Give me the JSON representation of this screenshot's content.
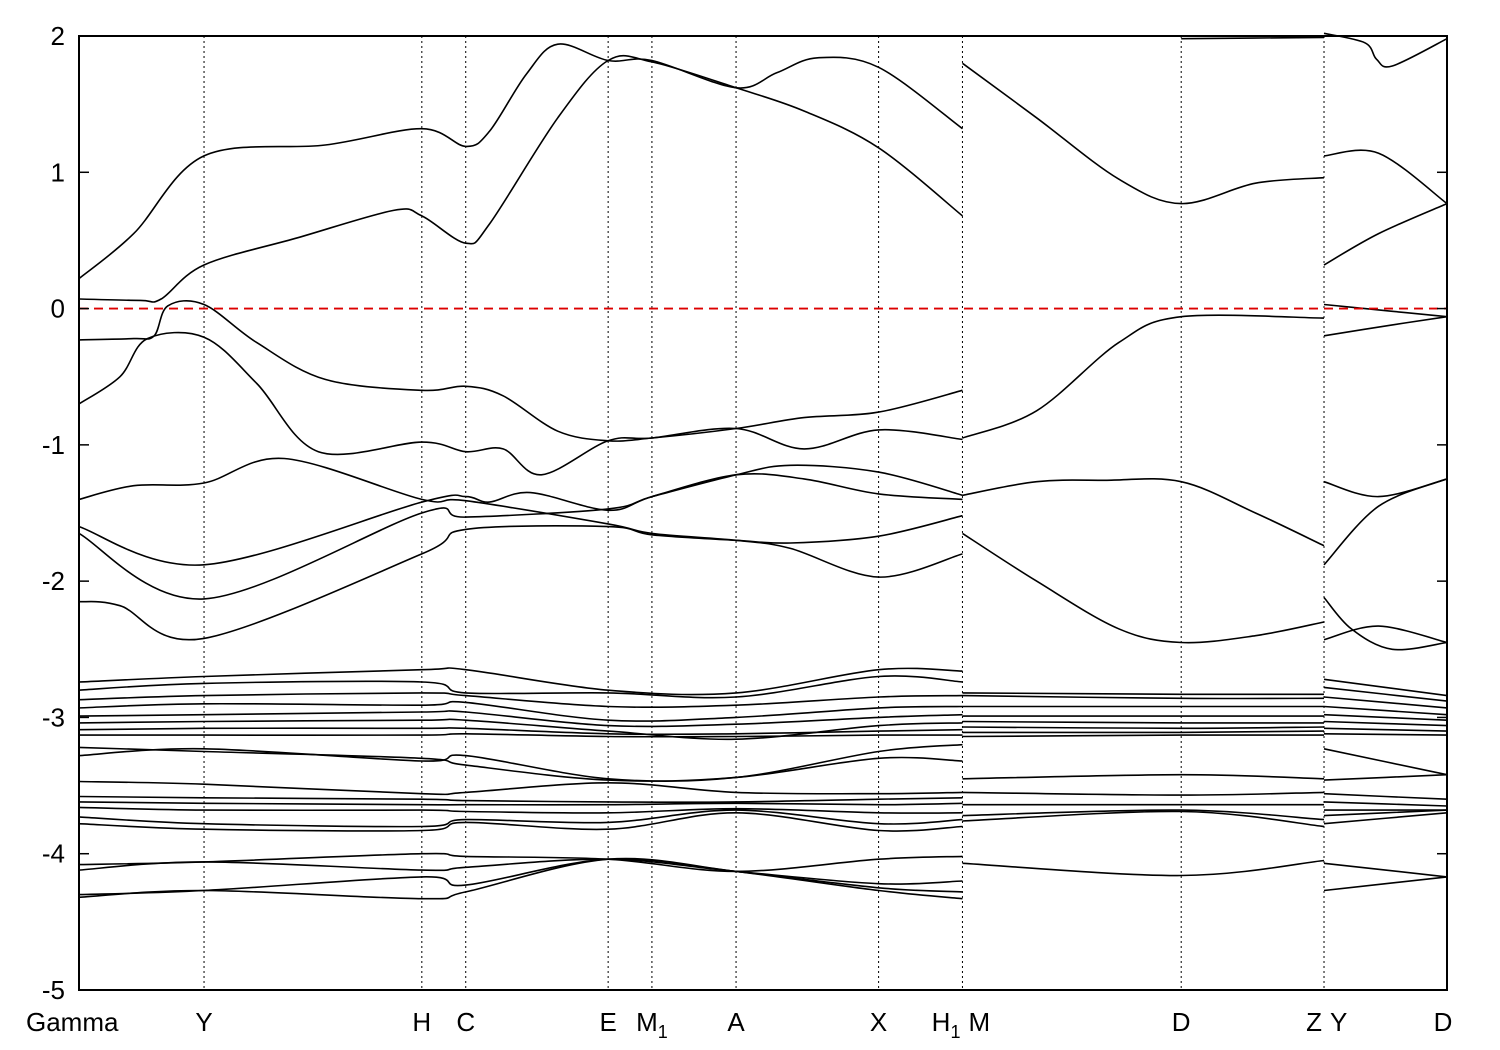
{
  "chart_data": {
    "type": "line",
    "title": "",
    "xlabel": "",
    "ylabel": "",
    "ylim": [
      -5,
      2
    ],
    "grid": false,
    "yticks": [
      "2",
      "1",
      "0",
      "-1",
      "-2",
      "-3",
      "-4",
      "-5"
    ],
    "kpoints": [
      {
        "label": "Gamma",
        "sub": "",
        "x": 0.0
      },
      {
        "label": "Y",
        "sub": "",
        "x": 0.0914
      },
      {
        "label": "H",
        "sub": "",
        "x": 0.2506
      },
      {
        "label": "C",
        "sub": "",
        "x": 0.2827
      },
      {
        "label": "E",
        "sub": "",
        "x": 0.3868
      },
      {
        "label": "M",
        "sub": "1",
        "x": 0.4188
      },
      {
        "label": "A",
        "sub": "",
        "x": 0.4803
      },
      {
        "label": "X",
        "sub": "",
        "x": 0.5845
      },
      {
        "label": "H",
        "sub": "1",
        "x": 0.6458
      },
      {
        "label": "M",
        "sub": "",
        "x": 0.6458
      },
      {
        "label": "D",
        "sub": "",
        "x": 0.8057
      },
      {
        "label": "Z",
        "sub": "",
        "x": 0.9101
      },
      {
        "label": "Y",
        "sub": "",
        "x": 0.9101
      },
      {
        "label": "D",
        "sub": "",
        "x": 1.0
      }
    ],
    "fermi_level": 0,
    "series": [
      {
        "x": [
          0,
          0.04,
          0.0914,
          0.18,
          0.2506,
          0.2827,
          0.3,
          0.327,
          0.35,
          0.3868,
          0.4188,
          0.4803,
          0.51,
          0.54,
          0.5845,
          0.6458
        ],
        "y": [
          0.22,
          0.55,
          1.12,
          1.2,
          1.32,
          1.19,
          1.3,
          1.72,
          1.94,
          1.82,
          1.82,
          1.62,
          1.73,
          1.84,
          1.77,
          1.32
        ]
      },
      {
        "x": [
          0,
          0.045,
          0.06,
          0.0914,
          0.16,
          0.23,
          0.2506,
          0.2827,
          0.3,
          0.35,
          0.3868,
          0.4188,
          0.4803,
          0.53,
          0.5845,
          0.6458
        ],
        "y": [
          0.07,
          0.06,
          0.07,
          0.32,
          0.52,
          0.72,
          0.68,
          0.48,
          0.62,
          1.4,
          1.82,
          1.81,
          1.62,
          1.45,
          1.18,
          0.68
        ]
      },
      {
        "x": [
          0,
          0.04,
          0.055,
          0.065,
          0.0914,
          0.13,
          0.18,
          0.2506,
          0.2827,
          0.31,
          0.35,
          0.3868,
          0.4188,
          0.4803,
          0.53,
          0.5845,
          0.6458
        ],
        "y": [
          -0.23,
          -0.22,
          -0.2,
          0.02,
          0.03,
          -0.25,
          -0.52,
          -0.6,
          -0.57,
          -0.64,
          -0.9,
          -0.97,
          -0.95,
          -0.88,
          -0.8,
          -0.76,
          -0.6
        ]
      },
      {
        "x": [
          0,
          0.03,
          0.05,
          0.0914,
          0.13,
          0.175,
          0.2506,
          0.2827,
          0.31,
          0.338,
          0.3868,
          0.4188,
          0.4803,
          0.53,
          0.5845,
          0.6458
        ],
        "y": [
          -0.7,
          -0.5,
          -0.22,
          -0.21,
          -0.55,
          -1.05,
          -0.98,
          -1.05,
          -1.03,
          -1.22,
          -0.97,
          -0.95,
          -0.88,
          -1.03,
          -0.89,
          -0.96
        ]
      },
      {
        "x": [
          0,
          0.04,
          0.0914,
          0.15,
          0.2506,
          0.2827,
          0.3868,
          0.4188,
          0.4803,
          0.52,
          0.5845,
          0.6458
        ],
        "y": [
          -1.4,
          -1.3,
          -1.28,
          -1.1,
          -1.4,
          -1.41,
          -1.58,
          -1.65,
          -1.7,
          -1.76,
          -1.97,
          -1.8
        ]
      },
      {
        "x": [
          0,
          0.0914,
          0.2506,
          0.2827,
          0.3,
          0.33,
          0.3868,
          0.4188,
          0.4803,
          0.53,
          0.5845,
          0.6458
        ],
        "y": [
          -1.6,
          -1.88,
          -1.42,
          -1.38,
          -1.42,
          -1.35,
          -1.48,
          -1.38,
          -1.22,
          -1.25,
          -1.36,
          -1.4
        ]
      },
      {
        "x": [
          0,
          0.0914,
          0.2506,
          0.2827,
          0.3868,
          0.4188,
          0.4803,
          0.52,
          0.5845,
          0.6458
        ],
        "y": [
          -1.65,
          -2.13,
          -1.5,
          -1.53,
          -1.47,
          -1.38,
          -1.22,
          -1.15,
          -1.2,
          -1.37
        ]
      },
      {
        "x": [
          0,
          0.03,
          0.0914,
          0.2506,
          0.2827,
          0.3868,
          0.4188,
          0.4803,
          0.52,
          0.5845,
          0.6458
        ],
        "y": [
          -2.15,
          -2.18,
          -2.42,
          -1.8,
          -1.62,
          -1.6,
          -1.66,
          -1.7,
          -1.72,
          -1.67,
          -1.52
        ]
      },
      {
        "x": [
          0.6458,
          0.7,
          0.76,
          0.8057,
          0.86,
          0.9101
        ],
        "y": [
          1.8,
          1.4,
          0.95,
          0.77,
          0.92,
          0.96
        ]
      },
      {
        "x": [
          0.6458,
          0.7,
          0.76,
          0.8057,
          0.9101
        ],
        "y": [
          -0.95,
          -0.75,
          -0.25,
          -0.06,
          -0.07
        ]
      },
      {
        "x": [
          0.6458,
          0.7,
          0.75,
          0.8057,
          0.86,
          0.9101
        ],
        "y": [
          -1.37,
          -1.27,
          -1.26,
          -1.27,
          -1.5,
          -1.74
        ]
      },
      {
        "x": [
          0.6458,
          0.7,
          0.76,
          0.8057,
          0.86,
          0.9101
        ],
        "y": [
          -1.65,
          -2.0,
          -2.35,
          -2.45,
          -2.4,
          -2.3
        ]
      },
      {
        "x": [
          0.6458,
          0.8057,
          0.9101
        ],
        "y": [
          -2.82,
          -2.83,
          -2.83
        ]
      },
      {
        "x": [
          0.6458,
          0.8057,
          0.9101
        ],
        "y": [
          -3.45,
          -3.42,
          -3.45
        ]
      },
      {
        "x": [
          0.6458,
          0.8057,
          0.9101
        ],
        "y": [
          -4.07,
          -4.16,
          -4.05
        ]
      },
      {
        "x": [
          0.8057,
          0.9101
        ],
        "y": [
          1.98,
          1.99
        ]
      },
      {
        "x": [
          0.9101,
          0.95,
          1.0
        ],
        "y": [
          1.12,
          1.14,
          0.77
        ]
      },
      {
        "x": [
          0.9101,
          0.95,
          1.0
        ],
        "y": [
          0.32,
          0.55,
          0.77
        ]
      },
      {
        "x": [
          0.9101,
          0.96,
          1.0
        ],
        "y": [
          0.03,
          -0.02,
          -0.06
        ]
      },
      {
        "x": [
          0.9101,
          0.96,
          1.0
        ],
        "y": [
          -0.2,
          -0.12,
          -0.06
        ]
      },
      {
        "x": [
          0.9101,
          0.95,
          1.0
        ],
        "y": [
          -1.27,
          -1.38,
          -1.25
        ]
      },
      {
        "x": [
          0.9101,
          0.95,
          1.0
        ],
        "y": [
          -1.88,
          -1.45,
          -1.25
        ]
      },
      {
        "x": [
          0.9101,
          0.93,
          0.96,
          1.0
        ],
        "y": [
          -2.12,
          -2.35,
          -2.5,
          -2.45
        ]
      },
      {
        "x": [
          0.9101,
          0.95,
          1.0
        ],
        "y": [
          -2.43,
          -2.33,
          -2.45
        ]
      },
      {
        "x": [
          0.9101,
          0.94,
          0.9485,
          0.96,
          1.0
        ],
        "y": [
          2.02,
          1.95,
          1.83,
          1.78,
          1.98
        ]
      },
      {
        "x": [
          0,
          0.0914,
          0.2506,
          0.2827,
          0.3868,
          0.4803,
          0.5845,
          0.6458
        ],
        "y": [
          -2.74,
          -2.7,
          -2.65,
          -2.65,
          -2.8,
          -2.82,
          -2.65,
          -2.66
        ]
      },
      {
        "x": [
          0,
          0.0914,
          0.2506,
          0.2827,
          0.3868,
          0.4803,
          0.5845,
          0.6458
        ],
        "y": [
          -2.8,
          -2.75,
          -2.74,
          -2.82,
          -2.82,
          -2.85,
          -2.7,
          -2.74
        ]
      },
      {
        "x": [
          0,
          0.0914,
          0.2506,
          0.2827,
          0.3868,
          0.4803,
          0.5845,
          0.6458
        ],
        "y": [
          -2.87,
          -2.84,
          -2.82,
          -2.84,
          -2.92,
          -2.91,
          -2.85,
          -2.84
        ]
      },
      {
        "x": [
          0,
          0.0914,
          0.2506,
          0.2827,
          0.3868,
          0.4803,
          0.5845,
          0.6458
        ],
        "y": [
          -2.93,
          -2.9,
          -2.91,
          -2.89,
          -3.02,
          -3.0,
          -2.93,
          -2.92
        ]
      },
      {
        "x": [
          0,
          0.0914,
          0.2506,
          0.2827,
          0.3868,
          0.4803,
          0.5845,
          0.6458
        ],
        "y": [
          -2.99,
          -2.98,
          -2.96,
          -2.96,
          -3.06,
          -3.05,
          -3.0,
          -2.98
        ]
      },
      {
        "x": [
          0,
          0.0914,
          0.2506,
          0.2827,
          0.3868,
          0.4803,
          0.5845,
          0.6458
        ],
        "y": [
          -3.04,
          -3.03,
          -3.02,
          -3.02,
          -3.1,
          -3.16,
          -3.06,
          -3.04
        ]
      },
      {
        "x": [
          0,
          0.0914,
          0.2506,
          0.2827,
          0.3868,
          0.4803,
          0.5845,
          0.6458
        ],
        "y": [
          -3.09,
          -3.08,
          -3.08,
          -3.08,
          -3.12,
          -3.12,
          -3.1,
          -3.09
        ]
      },
      {
        "x": [
          0,
          0.0914,
          0.2506,
          0.2827,
          0.3868,
          0.4803,
          0.5845,
          0.6458
        ],
        "y": [
          -3.13,
          -3.13,
          -3.13,
          -3.12,
          -3.14,
          -3.14,
          -3.13,
          -3.13
        ]
      },
      {
        "x": [
          0,
          0.0914,
          0.2506,
          0.2827,
          0.3868,
          0.4803,
          0.5845,
          0.6458
        ],
        "y": [
          -3.28,
          -3.23,
          -3.32,
          -3.28,
          -3.45,
          -3.44,
          -3.25,
          -3.2
        ]
      },
      {
        "x": [
          0,
          0.0914,
          0.2506,
          0.2827,
          0.3868,
          0.4803,
          0.5845,
          0.6458
        ],
        "y": [
          -3.22,
          -3.25,
          -3.3,
          -3.35,
          -3.46,
          -3.44,
          -3.3,
          -3.32
        ]
      },
      {
        "x": [
          0,
          0.0914,
          0.2506,
          0.2827,
          0.3868,
          0.4803,
          0.5845,
          0.6458
        ],
        "y": [
          -3.47,
          -3.49,
          -3.56,
          -3.55,
          -3.48,
          -3.55,
          -3.56,
          -3.55
        ]
      },
      {
        "x": [
          0,
          0.0914,
          0.2506,
          0.2827,
          0.3868,
          0.4803,
          0.5845,
          0.6458
        ],
        "y": [
          -3.58,
          -3.59,
          -3.6,
          -3.61,
          -3.62,
          -3.62,
          -3.6,
          -3.59
        ]
      },
      {
        "x": [
          0,
          0.0914,
          0.2506,
          0.2827,
          0.3868,
          0.4803,
          0.5845,
          0.6458
        ],
        "y": [
          -3.62,
          -3.63,
          -3.64,
          -3.64,
          -3.64,
          -3.63,
          -3.64,
          -3.63
        ]
      },
      {
        "x": [
          0,
          0.0914,
          0.2506,
          0.2827,
          0.3868,
          0.4803,
          0.5845,
          0.6458
        ],
        "y": [
          -3.66,
          -3.68,
          -3.68,
          -3.69,
          -3.7,
          -3.67,
          -3.7,
          -3.7
        ]
      },
      {
        "x": [
          0,
          0.0914,
          0.2506,
          0.2827,
          0.3868,
          0.4803,
          0.5845,
          0.6458
        ],
        "y": [
          -3.73,
          -3.78,
          -3.8,
          -3.75,
          -3.77,
          -3.68,
          -3.78,
          -3.75
        ]
      },
      {
        "x": [
          0,
          0.0914,
          0.2506,
          0.2827,
          0.3868,
          0.4803,
          0.5845,
          0.6458
        ],
        "y": [
          -3.78,
          -3.82,
          -3.83,
          -3.77,
          -3.82,
          -3.7,
          -3.83,
          -3.8
        ]
      },
      {
        "x": [
          0,
          0.0914,
          0.2506,
          0.2827,
          0.3868,
          0.4803,
          0.5845,
          0.6458
        ],
        "y": [
          -4.08,
          -4.06,
          -4.0,
          -4.02,
          -4.04,
          -4.13,
          -4.04,
          -4.02
        ]
      },
      {
        "x": [
          0,
          0.0914,
          0.2506,
          0.2827,
          0.3868,
          0.4803,
          0.5845,
          0.6458
        ],
        "y": [
          -4.12,
          -4.06,
          -4.12,
          -4.1,
          -4.04,
          -4.13,
          -4.22,
          -4.2
        ]
      },
      {
        "x": [
          0,
          0.0914,
          0.2506,
          0.2827,
          0.3868,
          0.4803,
          0.5845,
          0.6458
        ],
        "y": [
          -4.3,
          -4.27,
          -4.17,
          -4.23,
          -4.04,
          -4.13,
          -4.25,
          -4.28
        ]
      },
      {
        "x": [
          0,
          0.0914,
          0.2506,
          0.2827,
          0.3868,
          0.4803,
          0.5845,
          0.6458
        ],
        "y": [
          -4.32,
          -4.27,
          -4.33,
          -4.28,
          -4.04,
          -4.13,
          -4.27,
          -4.33
        ]
      },
      {
        "x": [
          0.6458,
          0.8057,
          0.9101
        ],
        "y": [
          -2.84,
          -2.86,
          -2.86
        ]
      },
      {
        "x": [
          0.6458,
          0.8057,
          0.9101
        ],
        "y": [
          -2.92,
          -2.92,
          -2.92
        ]
      },
      {
        "x": [
          0.6458,
          0.8057,
          0.9101
        ],
        "y": [
          -2.99,
          -2.99,
          -2.99
        ]
      },
      {
        "x": [
          0.6458,
          0.8057,
          0.9101
        ],
        "y": [
          -3.03,
          -3.04,
          -3.04
        ]
      },
      {
        "x": [
          0.6458,
          0.8057,
          0.9101
        ],
        "y": [
          -3.07,
          -3.08,
          -3.07
        ]
      },
      {
        "x": [
          0.6458,
          0.8057,
          0.9101
        ],
        "y": [
          -3.11,
          -3.11,
          -3.1
        ]
      },
      {
        "x": [
          0.6458,
          0.8057,
          0.9101
        ],
        "y": [
          -3.14,
          -3.13,
          -3.13
        ]
      },
      {
        "x": [
          0.6458,
          0.8057,
          0.9101
        ],
        "y": [
          -3.55,
          -3.57,
          -3.55
        ]
      },
      {
        "x": [
          0.6458,
          0.8057,
          0.9101
        ],
        "y": [
          -3.64,
          -3.64,
          -3.64
        ]
      },
      {
        "x": [
          0.6458,
          0.8057,
          0.9101
        ],
        "y": [
          -3.72,
          -3.68,
          -3.75
        ]
      },
      {
        "x": [
          0.6458,
          0.8057,
          0.9101
        ],
        "y": [
          -3.76,
          -3.69,
          -3.8
        ]
      },
      {
        "x": [
          0.9101,
          1.0
        ],
        "y": [
          -2.72,
          -2.84
        ]
      },
      {
        "x": [
          0.9101,
          1.0
        ],
        "y": [
          -2.78,
          -2.88
        ]
      },
      {
        "x": [
          0.9101,
          1.0
        ],
        "y": [
          -2.85,
          -2.93
        ]
      },
      {
        "x": [
          0.9101,
          1.0
        ],
        "y": [
          -2.92,
          -2.98
        ]
      },
      {
        "x": [
          0.9101,
          1.0
        ],
        "y": [
          -2.98,
          -3.02
        ]
      },
      {
        "x": [
          0.9101,
          1.0
        ],
        "y": [
          -3.03,
          -3.06
        ]
      },
      {
        "x": [
          0.9101,
          1.0
        ],
        "y": [
          -3.08,
          -3.1
        ]
      },
      {
        "x": [
          0.9101,
          1.0
        ],
        "y": [
          -3.12,
          -3.13
        ]
      },
      {
        "x": [
          0.9101,
          1.0
        ],
        "y": [
          -3.23,
          -3.42
        ]
      },
      {
        "x": [
          0.9101,
          1.0
        ],
        "y": [
          -3.46,
          -3.42
        ]
      },
      {
        "x": [
          0.9101,
          1.0
        ],
        "y": [
          -3.56,
          -3.6
        ]
      },
      {
        "x": [
          0.9101,
          1.0
        ],
        "y": [
          -3.62,
          -3.65
        ]
      },
      {
        "x": [
          0.9101,
          1.0
        ],
        "y": [
          -3.68,
          -3.68
        ]
      },
      {
        "x": [
          0.9101,
          1.0
        ],
        "y": [
          -3.72,
          -3.68
        ]
      },
      {
        "x": [
          0.9101,
          1.0
        ],
        "y": [
          -3.78,
          -3.7
        ]
      },
      {
        "x": [
          0.9101,
          1.0
        ],
        "y": [
          -4.07,
          -4.17
        ]
      },
      {
        "x": [
          0.9101,
          1.0
        ],
        "y": [
          -4.27,
          -4.17
        ]
      }
    ]
  }
}
